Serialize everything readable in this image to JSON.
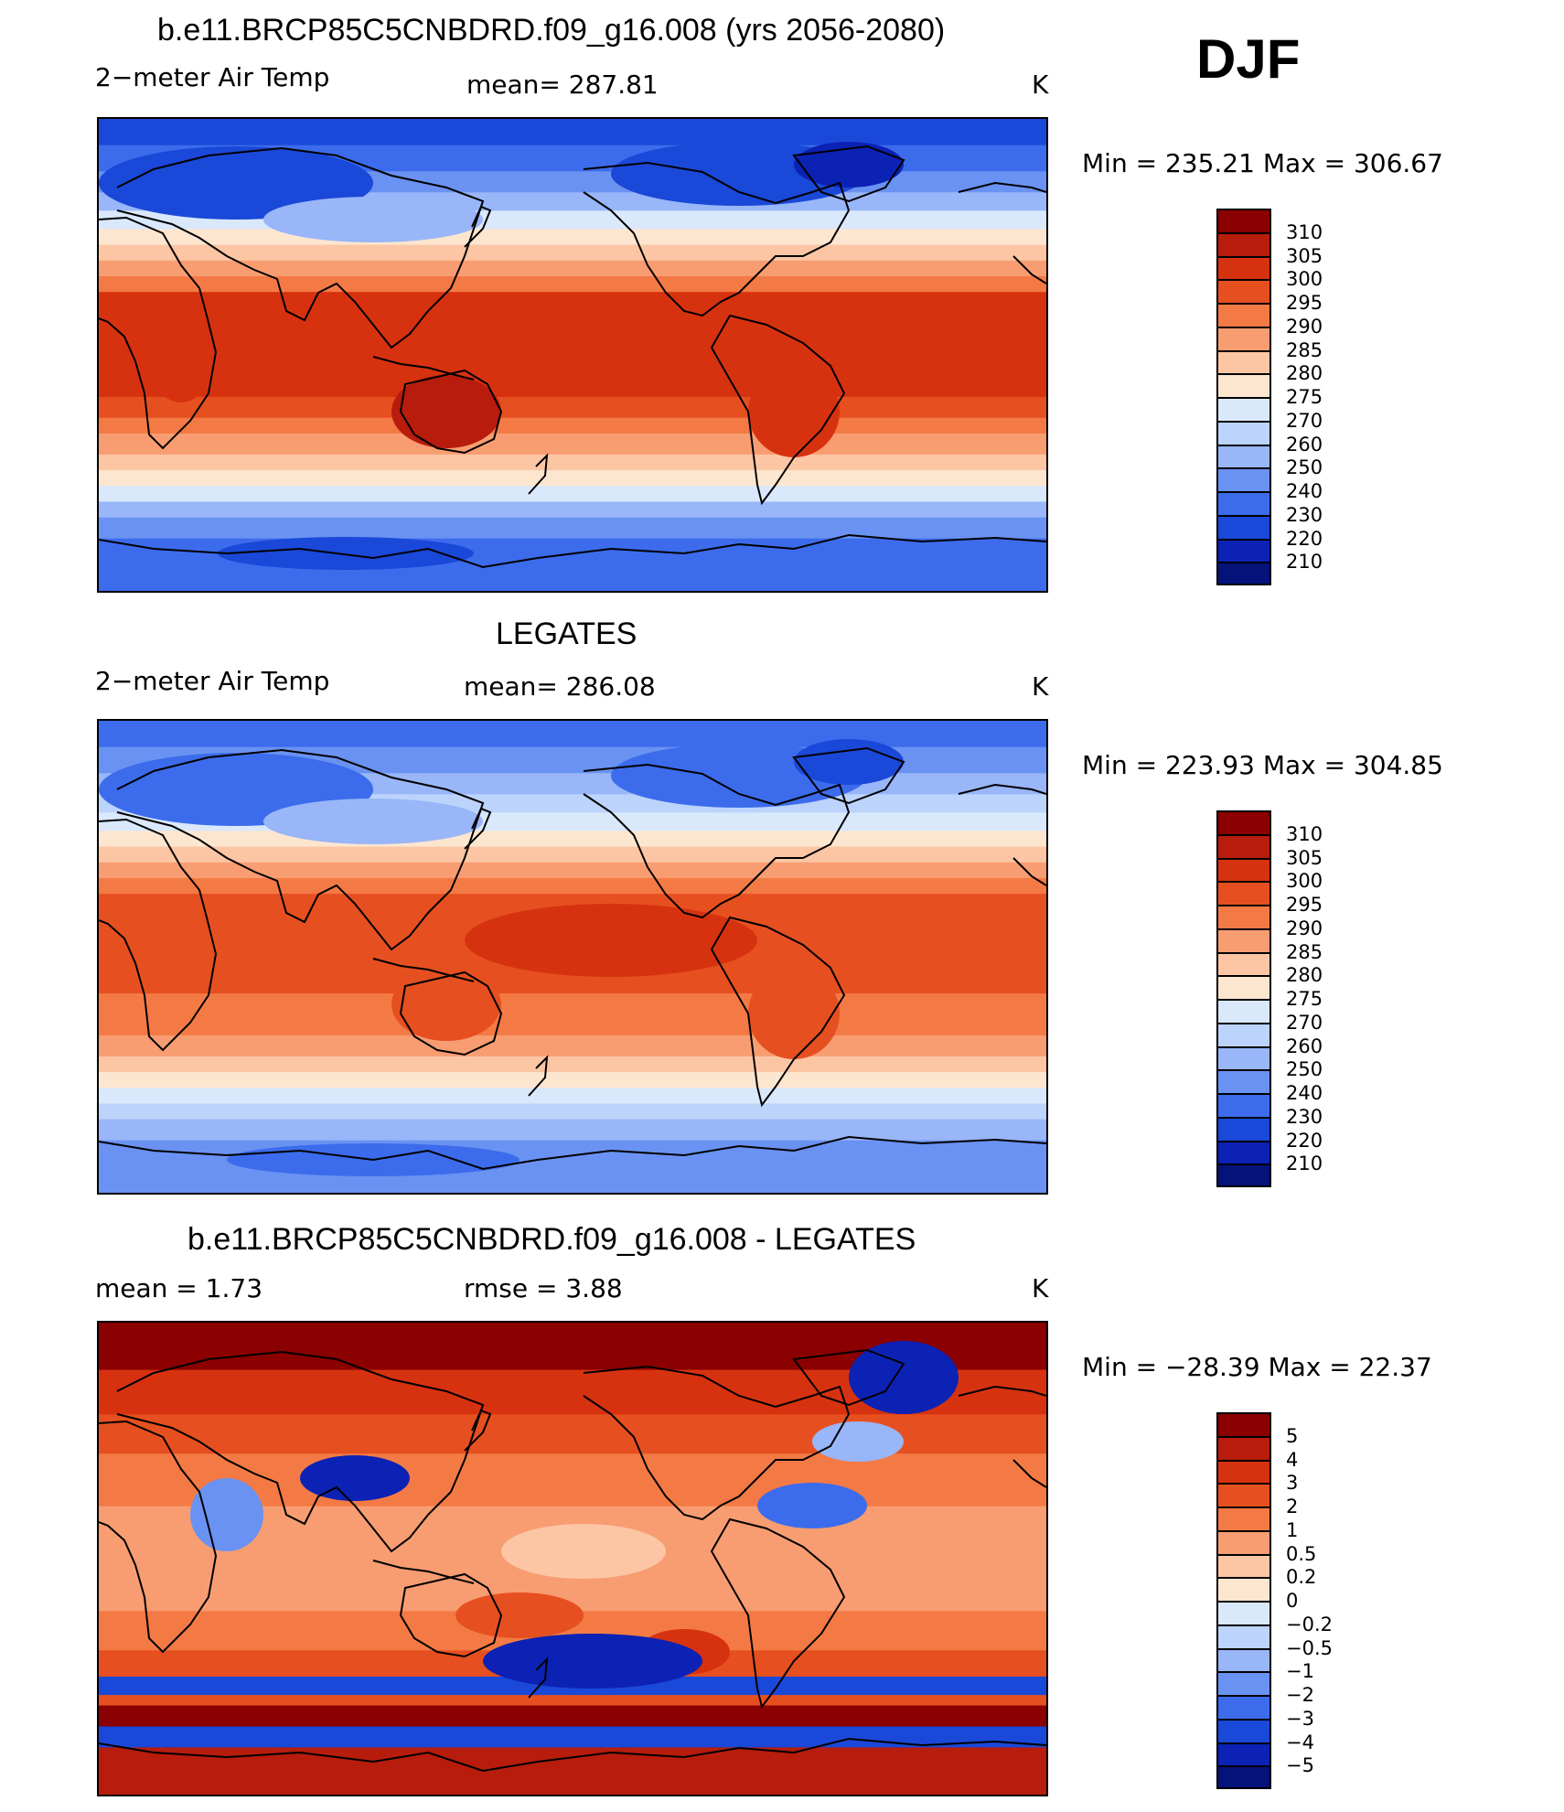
{
  "season": "DJF",
  "panels": [
    {
      "title": "b.e11.BRCP85C5CNBDRD.f09_g16.008 (yrs 2056-2080)",
      "left": "2−meter Air Temp",
      "center": "mean=  287.81",
      "units": "K",
      "minmax": "Min  =  235.21  Max  =  306.67"
    },
    {
      "title": "LEGATES",
      "left": "2−meter Air Temp",
      "center": "mean=  286.08",
      "units": "K",
      "minmax": "Min  =  223.93  Max  =  304.85"
    },
    {
      "title": "b.e11.BRCP85C5CNBDRD.f09_g16.008 - LEGATES",
      "left": "mean  =      1.73",
      "center": "rmse  =      3.88",
      "units": "K",
      "minmax": "Min  =  −28.39  Max  =    22.37"
    }
  ],
  "chart_data": [
    {
      "type": "heatmap",
      "title": "b.e11.BRCP85C5CNBDRD.f09_g16.008 (yrs 2056-2080)",
      "variable": "2−meter Air Temp",
      "units": "K",
      "mean": 287.81,
      "min": 235.21,
      "max": 306.67,
      "contour_levels": [
        210,
        220,
        230,
        240,
        250,
        260,
        270,
        275,
        280,
        285,
        290,
        295,
        300,
        305,
        310
      ],
      "colorbar_labels": [
        "310",
        "305",
        "300",
        "295",
        "290",
        "285",
        "280",
        "275",
        "270",
        "260",
        "250",
        "240",
        "230",
        "220",
        "210"
      ],
      "colors": [
        "#8b0000",
        "#b71c0c",
        "#d73210",
        "#e65020",
        "#f47a45",
        "#f89d72",
        "#fcc6a5",
        "#fde6d0",
        "#d9e8fb",
        "#bcd3fb",
        "#98b6f8",
        "#6a92f2",
        "#3c6cec",
        "#1a48d8",
        "#0b22b4",
        "#04127a"
      ]
    },
    {
      "type": "heatmap",
      "title": "LEGATES",
      "variable": "2−meter Air Temp",
      "units": "K",
      "mean": 286.08,
      "min": 223.93,
      "max": 304.85,
      "contour_levels": [
        210,
        220,
        230,
        240,
        250,
        260,
        270,
        275,
        280,
        285,
        290,
        295,
        300,
        305,
        310
      ],
      "colorbar_labels": [
        "310",
        "305",
        "300",
        "295",
        "290",
        "285",
        "280",
        "275",
        "270",
        "260",
        "250",
        "240",
        "230",
        "220",
        "210"
      ],
      "colors": [
        "#8b0000",
        "#b71c0c",
        "#d73210",
        "#e65020",
        "#f47a45",
        "#f89d72",
        "#fcc6a5",
        "#fde6d0",
        "#d9e8fb",
        "#bcd3fb",
        "#98b6f8",
        "#6a92f2",
        "#3c6cec",
        "#1a48d8",
        "#0b22b4",
        "#04127a"
      ]
    },
    {
      "type": "heatmap",
      "title": "b.e11.BRCP85C5CNBDRD.f09_g16.008 - LEGATES",
      "units": "K",
      "mean": 1.73,
      "rmse": 3.88,
      "min": -28.39,
      "max": 22.37,
      "contour_levels": [
        -5,
        -4,
        -3,
        -2,
        -1,
        -0.5,
        -0.2,
        0,
        0.2,
        0.5,
        1,
        2,
        3,
        4,
        5
      ],
      "colorbar_labels": [
        "5",
        "4",
        "3",
        "2",
        "1",
        "0.5",
        "0.2",
        "0",
        "−0.2",
        "−0.5",
        "−1",
        "−2",
        "−3",
        "−4",
        "−5"
      ],
      "colors": [
        "#8b0000",
        "#b71c0c",
        "#d73210",
        "#e65020",
        "#f47a45",
        "#f89d72",
        "#fcc6a5",
        "#fde6d0",
        "#d9e8fb",
        "#bcd3fb",
        "#98b6f8",
        "#6a92f2",
        "#3c6cec",
        "#1a48d8",
        "#0b22b4",
        "#04127a"
      ]
    }
  ]
}
